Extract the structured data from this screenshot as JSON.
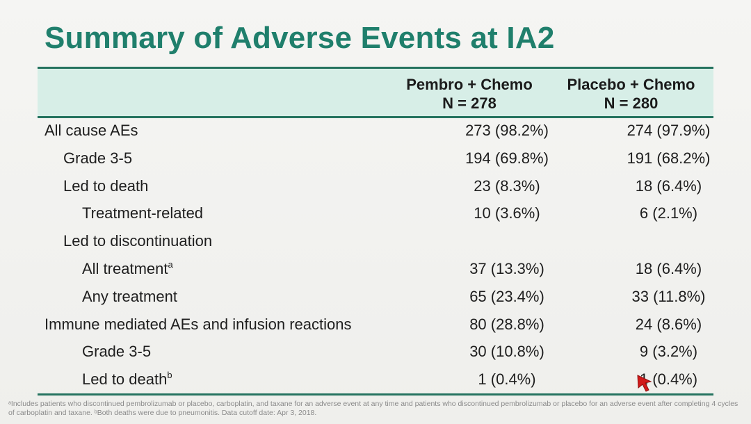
{
  "title": "Summary of Adverse Events at IA2",
  "table": {
    "columns": [
      {
        "name": "Pembro + Chemo",
        "n": "N = 278"
      },
      {
        "name": "Placebo + Chemo",
        "n": "N = 280"
      }
    ],
    "rows": [
      {
        "label": "All cause AEs",
        "sup": "",
        "pembro": "273 (98.2%)",
        "placebo": "274 (97.9%)"
      },
      {
        "label": "Grade 3-5",
        "sup": "",
        "pembro": "194 (69.8%)",
        "placebo": "191 (68.2%)"
      },
      {
        "label": "Led to death",
        "sup": "",
        "pembro": "23 (8.3%)",
        "placebo": "18 (6.4%)"
      },
      {
        "label": "Treatment-related",
        "sup": "",
        "pembro": "10 (3.6%)",
        "placebo": "6 (2.1%)"
      },
      {
        "label": "Led to discontinuation",
        "sup": "",
        "pembro": "",
        "placebo": ""
      },
      {
        "label": "All treatment",
        "sup": "a",
        "pembro": "37 (13.3%)",
        "placebo": "18 (6.4%)"
      },
      {
        "label": "Any treatment",
        "sup": "",
        "pembro": "65 (23.4%)",
        "placebo": "33 (11.8%)"
      },
      {
        "label": "Immune mediated AEs and infusion reactions",
        "sup": "",
        "pembro": "80 (28.8%)",
        "placebo": "24 (8.6%)"
      },
      {
        "label": "Grade 3-5",
        "sup": "",
        "pembro": "30 (10.8%)",
        "placebo": "9 (3.2%)"
      },
      {
        "label": "Led to death",
        "sup": "b",
        "pembro": "1 (0.4%)",
        "placebo": "1 (0.4%)"
      }
    ]
  },
  "footnote": "ᵃIncludes patients who discontinued pembrolizumab or placebo, carboplatin, and taxane for an adverse event at any time and patients who discontinued pembrolizumab or placebo for an adverse event after completing 4 cycles of carboplatin and taxane. ᵇBoth deaths were due to pneumonitis. Data cutoff date: Apr 3, 2018.",
  "colors": {
    "title": "#1f7f6c",
    "rule": "#25735f",
    "header_band": "#d7eee7",
    "pointer": "#d11a1a"
  }
}
